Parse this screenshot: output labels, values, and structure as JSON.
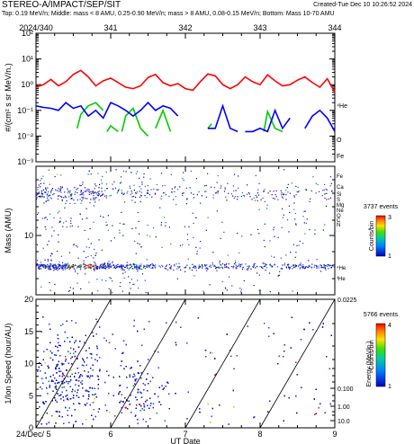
{
  "header": {
    "title": "STEREO-A/IMPACT/SEP/SIT",
    "created": "Created-Tue Dec 10 10:26:52 2024",
    "subtitle": "Top: 0.19 MeV/n; Middle: mass < 8 AMU, 0.25-0.90 MeV/n; mass > 8 AMU, 0.08-0.15 MeV/n; Bottom: Mass 10-70 AMU"
  },
  "colors": {
    "He": "#ff0000",
    "O": "#00cc00",
    "Fe": "#0000ff",
    "axis": "#000000"
  },
  "chart_data": [
    {
      "type": "line",
      "panel": "top",
      "ylabel": "#/(cm² s sr MeV/n.)",
      "yscale": "log",
      "ylim": [
        0.001,
        100
      ],
      "y_ticks": [
        "10⁻³",
        "10⁻²",
        "10⁻¹",
        "10⁰",
        "10¹",
        "10²"
      ],
      "top_axis_ticks": [
        "2024/340",
        "341",
        "342",
        "343",
        "344"
      ],
      "xlim": [
        340,
        344
      ],
      "series": [
        {
          "name": "⁴He",
          "color": "#ff0000",
          "x": [
            340.0,
            340.1,
            340.2,
            340.3,
            340.4,
            340.5,
            340.6,
            340.7,
            340.8,
            340.9,
            341.0,
            341.1,
            341.2,
            341.3,
            341.4,
            341.5,
            341.6,
            341.7,
            341.8,
            341.9,
            342.0,
            342.1,
            342.2,
            342.3,
            342.4,
            342.5,
            342.6,
            342.7,
            342.8,
            342.9,
            343.0,
            343.1,
            343.2,
            343.3,
            343.4,
            343.5,
            343.6,
            343.7,
            343.8,
            343.9,
            344.0
          ],
          "y": [
            0.8,
            1.0,
            1.6,
            0.9,
            1.3,
            2.5,
            3.6,
            2.0,
            0.9,
            1.4,
            1.8,
            1.2,
            0.8,
            0.7,
            0.9,
            1.9,
            2.5,
            1.2,
            0.9,
            1.1,
            0.7,
            0.6,
            1.3,
            2.6,
            2.2,
            1.0,
            0.7,
            1.0,
            2.0,
            1.3,
            1.0,
            2.4,
            1.4,
            0.9,
            1.0,
            1.5,
            2.0,
            1.2,
            0.8,
            1.7,
            0.5
          ]
        },
        {
          "name": "O",
          "color": "#00cc00",
          "segments": [
            {
              "x": [
                340.55,
                340.6,
                340.7,
                340.8,
                340.9
              ],
              "y": [
                0.02,
                0.07,
                0.15,
                0.2,
                0.1
              ]
            },
            {
              "x": [
                340.95,
                341.0,
                341.1
              ],
              "y": [
                0.015,
                0.025,
                0.015
              ]
            },
            {
              "x": [
                341.15,
                341.2,
                341.3,
                341.4,
                341.5
              ],
              "y": [
                0.015,
                0.06,
                0.12,
                0.02,
                0.01
              ]
            },
            {
              "x": [
                341.6,
                341.7,
                341.8
              ],
              "y": [
                0.02,
                0.1,
                0.015
              ]
            },
            {
              "x": [
                342.3,
                342.35
              ],
              "y": [
                0.02,
                0.03
              ]
            },
            {
              "x": [
                343.05,
                343.1,
                343.2,
                343.3
              ],
              "y": [
                0.015,
                0.09,
                0.02,
                0.015
              ]
            }
          ]
        },
        {
          "name": "Fe",
          "color": "#0000ff",
          "segments": [
            {
              "x": [
                340.0,
                340.1,
                340.2,
                340.3,
                340.4,
                340.5,
                340.6,
                340.7,
                340.8,
                340.9,
                341.0,
                341.1,
                341.2,
                341.3,
                341.4,
                341.5,
                341.6,
                341.7,
                341.8,
                341.9
              ],
              "y": [
                0.15,
                0.13,
                0.12,
                0.1,
                0.2,
                0.12,
                0.15,
                0.06,
                0.1,
                0.05,
                0.2,
                0.15,
                0.1,
                0.06,
                0.1,
                0.2,
                0.1,
                0.15,
                0.12,
                0.06
              ]
            },
            {
              "x": [
                342.3,
                342.4,
                342.5,
                342.6,
                342.7
              ],
              "y": [
                0.02,
                0.02,
                0.15,
                0.02,
                0.015
              ]
            },
            {
              "x": [
                342.8,
                342.9,
                343.0,
                343.1,
                343.2,
                343.3,
                343.4
              ],
              "y": [
                0.015,
                0.015,
                0.02,
                0.015,
                0.1,
                0.02,
                0.05
              ]
            },
            {
              "x": [
                343.6,
                343.7,
                343.8,
                343.9,
                344.0
              ],
              "y": [
                0.02,
                0.06,
                0.1,
                0.05,
                0.015
              ]
            }
          ]
        }
      ],
      "right_labels": [
        "⁴He",
        "O",
        "Fe"
      ]
    },
    {
      "type": "scatter",
      "panel": "middle",
      "ylabel": "Mass (AMU)",
      "y_ticks": [
        "10"
      ],
      "right_labels": [
        "Fe",
        "Ca",
        "Si",
        "S",
        "Mg",
        "Ne",
        "O",
        "C",
        "N",
        "⁴He",
        "³He"
      ],
      "colorbar": {
        "title": "3737 events",
        "label": "Counts/bin",
        "ticks": [
          "1",
          "3"
        ]
      }
    },
    {
      "type": "scatter",
      "panel": "bottom",
      "ylabel": "1/Ion Speed (hour/AU)",
      "ylim": [
        0,
        20
      ],
      "y_ticks": [
        "0",
        "5",
        "10",
        "15",
        "20"
      ],
      "right_axis_label": "Energy (MeV/n.)",
      "right_axis_ticks": [
        "0.0225",
        "0.100",
        "1.00",
        "10.0"
      ],
      "xlabel": "UT Date",
      "x_ticks": [
        "24/Dec/ 5",
        "6",
        "7",
        "8",
        "9"
      ],
      "colorbar": {
        "title": "5766 events",
        "label": "Counts/bin",
        "ticks": [
          "1",
          "4"
        ]
      }
    }
  ]
}
